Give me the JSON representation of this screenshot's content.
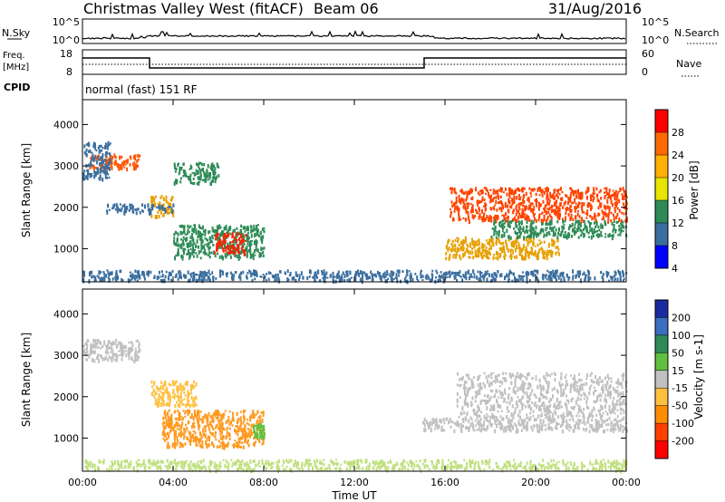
{
  "header": {
    "title": "Christmas Valley West (fitACF)",
    "beam": "Beam 06",
    "date": "31/Aug/2016"
  },
  "params": {
    "nsky_label": "N.Sky",
    "nsky_ticks": [
      "10^5",
      "10^0"
    ],
    "nsearch_label": "N.Search",
    "nsearch_ticks": [
      "10^5",
      "10^0"
    ],
    "freq_label": "Freq.",
    "freq_unit": "[MHz]",
    "freq_ticks": [
      "18",
      "8"
    ],
    "nave_label": "Nave",
    "nave_ticks": [
      "60",
      "0"
    ],
    "cpid_label": "CPID",
    "cpid_text": "normal (fast) 151 RF",
    "colors": {
      "nsky": "#000000",
      "freq": "#000000"
    }
  },
  "chart_data": [
    {
      "type": "heatmap",
      "name": "power",
      "ylabel": "Slant Range [km]",
      "yticks": [
        1000,
        2000,
        3000,
        4000
      ],
      "ylim": [
        200,
        4600
      ],
      "xticks": [
        "00:00",
        "04:00",
        "08:00",
        "12:00",
        "16:00",
        "20:00",
        "00:00"
      ],
      "xlim_hours": [
        0,
        24
      ],
      "colorbar": {
        "label": "Power [dB]",
        "ticks": [
          "28",
          "24",
          "20",
          "16",
          "12",
          "8",
          "4"
        ],
        "colors": [
          "#ff0000",
          "#ff6a00",
          "#ffb000",
          "#e6e600",
          "#2e8b57",
          "#3a6e9e",
          "#0000ff"
        ]
      },
      "regions": [
        {
          "t0": 0.3,
          "t1": 2.5,
          "r0": 2950,
          "r1": 3300,
          "color": "#ff5500"
        },
        {
          "t0": 0.0,
          "t1": 1.2,
          "r0": 2700,
          "r1": 3600,
          "color": "#3a6e9e"
        },
        {
          "t0": 3.0,
          "t1": 4.0,
          "r0": 1800,
          "r1": 2300,
          "color": "#e6a000"
        },
        {
          "t0": 4.0,
          "t1": 6.0,
          "r0": 2600,
          "r1": 3100,
          "color": "#2e8b57"
        },
        {
          "t0": 4.0,
          "t1": 8.0,
          "r0": 800,
          "r1": 1600,
          "color": "#2e8b57"
        },
        {
          "t0": 5.8,
          "t1": 7.2,
          "r0": 900,
          "r1": 1400,
          "color": "#ff2200"
        },
        {
          "t0": 1.0,
          "t1": 4.0,
          "r0": 1900,
          "r1": 2100,
          "color": "#3a6e9e"
        },
        {
          "t0": 16.2,
          "t1": 24.0,
          "r0": 1700,
          "r1": 2500,
          "color": "#ff4400"
        },
        {
          "t0": 16.0,
          "t1": 21.0,
          "r0": 800,
          "r1": 1300,
          "color": "#e6a000"
        },
        {
          "t0": 18.0,
          "t1": 24.0,
          "r0": 1300,
          "r1": 1700,
          "color": "#2e8b57"
        },
        {
          "t0": 0.0,
          "t1": 24.0,
          "r0": 250,
          "r1": 500,
          "color": "#3a6e9e"
        }
      ]
    },
    {
      "type": "heatmap",
      "name": "velocity",
      "ylabel": "Slant Range [km]",
      "yticks": [
        1000,
        2000,
        3000,
        4000
      ],
      "ylim": [
        200,
        4600
      ],
      "xticks": [
        "00:00",
        "04:00",
        "08:00",
        "12:00",
        "16:00",
        "20:00",
        "00:00"
      ],
      "xlim_hours": [
        0,
        24
      ],
      "xlabel": "Time UT",
      "colorbar": {
        "label": "Velocity [m s-1]",
        "ticks": [
          "200",
          "100",
          "50",
          "15",
          "-15",
          "-50",
          "-100",
          "-200"
        ],
        "colors": [
          "#1a2aa0",
          "#3a6ec0",
          "#2e8b57",
          "#60c040",
          "#c0c0c0",
          "#ffc040",
          "#ff8c00",
          "#ff4000",
          "#ff0000"
        ]
      },
      "regions": [
        {
          "t0": 0.0,
          "t1": 2.5,
          "r0": 2900,
          "r1": 3400,
          "color": "#c0c0c0"
        },
        {
          "t0": 3.0,
          "t1": 5.0,
          "r0": 1800,
          "r1": 2400,
          "color": "#ffc040"
        },
        {
          "t0": 3.5,
          "t1": 8.0,
          "r0": 800,
          "r1": 1700,
          "color": "#ff9a20"
        },
        {
          "t0": 7.5,
          "t1": 8.0,
          "r0": 1000,
          "r1": 1400,
          "color": "#60c040"
        },
        {
          "t0": 16.5,
          "t1": 24.0,
          "r0": 1500,
          "r1": 2600,
          "color": "#c0c0c0"
        },
        {
          "t0": 15.0,
          "t1": 24.0,
          "r0": 1200,
          "r1": 1500,
          "color": "#c0c0c0"
        },
        {
          "t0": 0.0,
          "t1": 24.0,
          "r0": 250,
          "r1": 500,
          "color": "#c0e080"
        }
      ]
    }
  ]
}
